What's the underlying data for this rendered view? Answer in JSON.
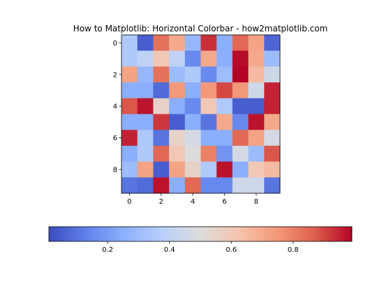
{
  "chart_data": {
    "type": "heatmap",
    "title": "How to Matplotlib: Horizontal Colorbar - how2matplotlib.com",
    "colormap": "coolwarm",
    "x_ticks": [
      0,
      2,
      4,
      6,
      8
    ],
    "y_ticks": [
      0,
      2,
      4,
      6,
      8
    ],
    "x_tick_labels": [
      "0",
      "2",
      "4",
      "6",
      "8"
    ],
    "y_tick_labels": [
      "0",
      "2",
      "4",
      "6",
      "8"
    ],
    "colorbar": {
      "orientation": "horizontal",
      "placement": "bottom",
      "range": [
        0.01,
        0.99
      ],
      "ticks": [
        0.2,
        0.4,
        0.6,
        0.8
      ],
      "tick_labels": [
        "0.2",
        "0.4",
        "0.6",
        "0.8"
      ]
    },
    "values": [
      [
        0.35,
        0.05,
        0.83,
        0.7,
        0.28,
        0.93,
        0.25,
        0.85,
        0.72,
        0.07
      ],
      [
        0.35,
        0.4,
        0.6,
        0.4,
        0.15,
        0.7,
        0.25,
        0.98,
        0.7,
        0.3
      ],
      [
        0.72,
        0.28,
        0.83,
        0.3,
        0.35,
        0.15,
        0.3,
        0.99,
        0.65,
        0.45
      ],
      [
        0.25,
        0.25,
        0.08,
        0.75,
        0.25,
        0.75,
        0.9,
        0.75,
        0.45,
        0.95
      ],
      [
        0.88,
        0.97,
        0.55,
        0.25,
        0.15,
        0.6,
        0.35,
        0.05,
        0.05,
        0.95
      ],
      [
        0.25,
        0.25,
        0.92,
        0.05,
        0.25,
        0.1,
        0.7,
        0.15,
        0.97,
        0.7
      ],
      [
        0.95,
        0.35,
        0.1,
        0.55,
        0.47,
        0.25,
        0.25,
        0.85,
        0.72,
        0.47
      ],
      [
        0.25,
        0.35,
        0.85,
        0.6,
        0.5,
        0.8,
        0.18,
        0.47,
        0.3,
        0.88
      ],
      [
        0.3,
        0.72,
        0.05,
        0.72,
        0.55,
        0.35,
        0.97,
        0.25,
        0.6,
        0.65
      ],
      [
        0.1,
        0.08,
        0.97,
        0.25,
        0.85,
        0.15,
        0.15,
        0.45,
        0.45,
        0.1
      ]
    ]
  }
}
